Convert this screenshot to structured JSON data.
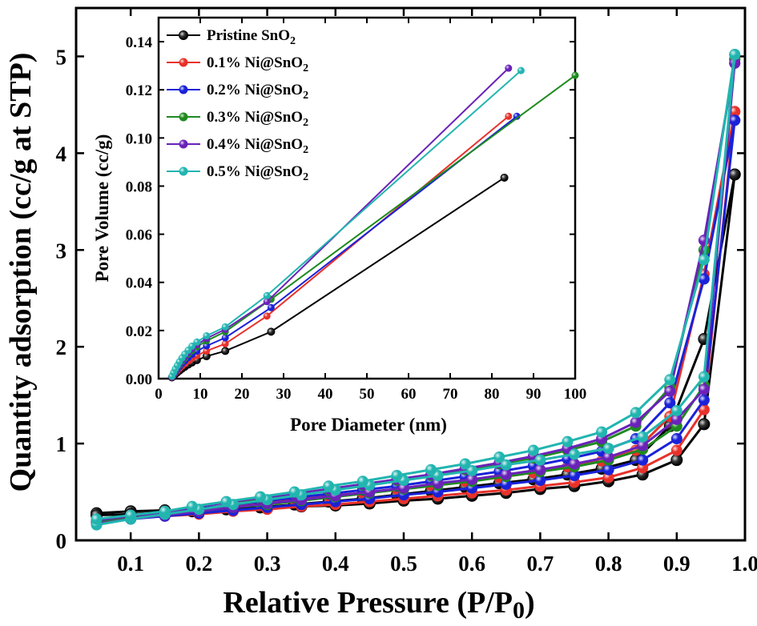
{
  "chart_data": [
    {
      "type": "line",
      "xlabel": "Relative Pressure (P/P",
      "xlabel_sub": "0",
      "xlabel_end": ")",
      "ylabel": "Quantity adsorption (cc/g at STP)",
      "xlim": [
        0.02,
        1.0
      ],
      "ylim": [
        0,
        5.5
      ],
      "xticks": [
        0.1,
        0.2,
        0.3,
        0.4,
        0.5,
        0.6,
        0.7,
        0.8,
        0.9,
        1.0
      ],
      "xtick_labels": [
        "0.1",
        "0.2",
        "0.3",
        "0.4",
        "0.5",
        "0.6",
        "0.7",
        "0.8",
        "0.9",
        "1.0"
      ],
      "yticks": [
        0,
        1,
        2,
        3,
        4,
        5
      ],
      "ytick_labels": [
        "0",
        "1",
        "2",
        "3",
        "4",
        "5"
      ],
      "x": [
        0.05,
        0.1,
        0.15,
        0.2,
        0.25,
        0.3,
        0.35,
        0.4,
        0.45,
        0.5,
        0.55,
        0.6,
        0.65,
        0.7,
        0.75,
        0.8,
        0.85,
        0.9,
        0.94,
        0.985
      ],
      "x_desorption": [
        0.985,
        0.94,
        0.89,
        0.84,
        0.79,
        0.74,
        0.69,
        0.64,
        0.59,
        0.54,
        0.49,
        0.44,
        0.39,
        0.34,
        0.29,
        0.24,
        0.19,
        0.15,
        0.1,
        0.05
      ],
      "series": [
        {
          "color": "#000000",
          "adsorption": [
            0.28,
            0.3,
            0.31,
            0.31,
            0.32,
            0.33,
            0.35,
            0.36,
            0.38,
            0.41,
            0.43,
            0.46,
            0.49,
            0.53,
            0.56,
            0.61,
            0.68,
            0.83,
            1.2,
            3.78
          ],
          "desorption": [
            3.78,
            2.08,
            1.18,
            0.83,
            0.74,
            0.68,
            0.63,
            0.59,
            0.55,
            0.51,
            0.47,
            0.43,
            0.4,
            0.37,
            0.34,
            0.32,
            0.3,
            0.29,
            0.27,
            0.26
          ]
        },
        {
          "color": "#e8312a",
          "adsorption": [
            0.19,
            0.23,
            0.25,
            0.27,
            0.3,
            0.32,
            0.35,
            0.37,
            0.4,
            0.43,
            0.46,
            0.49,
            0.52,
            0.56,
            0.6,
            0.65,
            0.75,
            0.93,
            1.35,
            4.43
          ],
          "desorption": [
            4.43,
            2.75,
            1.28,
            0.93,
            0.82,
            0.76,
            0.7,
            0.65,
            0.61,
            0.57,
            0.53,
            0.49,
            0.46,
            0.42,
            0.39,
            0.35,
            0.31,
            0.27,
            0.23,
            0.19
          ]
        },
        {
          "color": "#1a22d8",
          "adsorption": [
            0.18,
            0.22,
            0.25,
            0.28,
            0.31,
            0.34,
            0.37,
            0.4,
            0.43,
            0.47,
            0.5,
            0.54,
            0.58,
            0.62,
            0.67,
            0.73,
            0.83,
            1.05,
            1.45,
            4.34
          ],
          "desorption": [
            4.34,
            2.7,
            1.42,
            1.05,
            0.92,
            0.84,
            0.77,
            0.71,
            0.66,
            0.61,
            0.56,
            0.52,
            0.48,
            0.44,
            0.4,
            0.36,
            0.32,
            0.28,
            0.24,
            0.2
          ]
        },
        {
          "color": "#1f8a1f",
          "adsorption": [
            0.18,
            0.23,
            0.27,
            0.3,
            0.34,
            0.37,
            0.41,
            0.45,
            0.49,
            0.53,
            0.57,
            0.61,
            0.66,
            0.71,
            0.76,
            0.83,
            0.94,
            1.18,
            1.6,
            4.97
          ],
          "desorption": [
            4.97,
            3.0,
            1.58,
            1.18,
            1.02,
            0.93,
            0.85,
            0.79,
            0.73,
            0.67,
            0.62,
            0.57,
            0.52,
            0.48,
            0.43,
            0.39,
            0.34,
            0.29,
            0.25,
            0.21
          ]
        },
        {
          "color": "#6a22b8",
          "adsorption": [
            0.17,
            0.22,
            0.26,
            0.3,
            0.34,
            0.38,
            0.42,
            0.46,
            0.5,
            0.54,
            0.59,
            0.63,
            0.68,
            0.73,
            0.79,
            0.86,
            0.98,
            1.25,
            1.56,
            4.93
          ],
          "desorption": [
            4.93,
            3.1,
            1.54,
            1.22,
            1.05,
            0.95,
            0.87,
            0.8,
            0.74,
            0.68,
            0.63,
            0.58,
            0.53,
            0.48,
            0.44,
            0.39,
            0.34,
            0.29,
            0.25,
            0.21
          ]
        },
        {
          "color": "#22b5b0",
          "adsorption": [
            0.16,
            0.22,
            0.27,
            0.32,
            0.37,
            0.42,
            0.47,
            0.52,
            0.57,
            0.62,
            0.67,
            0.72,
            0.78,
            0.83,
            0.89,
            0.95,
            1.07,
            1.34,
            1.69,
            5.02
          ],
          "desorption": [
            5.02,
            2.9,
            1.66,
            1.32,
            1.12,
            1.02,
            0.93,
            0.86,
            0.79,
            0.73,
            0.67,
            0.61,
            0.56,
            0.5,
            0.45,
            0.4,
            0.35,
            0.3,
            0.26,
            0.22
          ]
        }
      ]
    },
    {
      "type": "line",
      "xlabel": "Pore Diameter (nm)",
      "ylabel": "Pore Volume (cc/g)",
      "xlim": [
        0,
        100
      ],
      "ylim": [
        0,
        0.15
      ],
      "xticks": [
        0,
        10,
        20,
        30,
        40,
        50,
        60,
        70,
        80,
        90,
        100
      ],
      "xtick_labels": [
        "0",
        "10",
        "20",
        "30",
        "40",
        "50",
        "60",
        "70",
        "80",
        "90",
        "100"
      ],
      "yticks": [
        0.0,
        0.02,
        0.04,
        0.06,
        0.08,
        0.1,
        0.12,
        0.14
      ],
      "ytick_labels": [
        "0.00",
        "0.02",
        "0.04",
        "0.06",
        "0.08",
        "0.10",
        "0.12",
        "0.14"
      ],
      "legend_position": "top-left",
      "series": [
        {
          "name_pre": "Pristine SnO",
          "name_sub": "2",
          "color": "#000000",
          "x": [
            3.2,
            3.6,
            4.0,
            4.5,
            5.0,
            5.6,
            6.3,
            7.1,
            8.0,
            9.2,
            11.5,
            16.0,
            27.0,
            83.0
          ],
          "y": [
            0.0005,
            0.0012,
            0.0019,
            0.0026,
            0.0033,
            0.0041,
            0.0049,
            0.0058,
            0.0067,
            0.0077,
            0.0093,
            0.0115,
            0.0195,
            0.0835
          ]
        },
        {
          "name_pre": "0.1% Ni@SnO",
          "name_sub": "2",
          "color": "#e8312a",
          "x": [
            3.2,
            3.6,
            4.0,
            4.5,
            5.0,
            5.6,
            6.3,
            7.1,
            8.0,
            9.2,
            11.5,
            16.0,
            26.0,
            84.0
          ],
          "y": [
            0.0006,
            0.0015,
            0.0024,
            0.0033,
            0.0042,
            0.0052,
            0.0062,
            0.0073,
            0.0084,
            0.0096,
            0.0115,
            0.0145,
            0.026,
            0.109
          ]
        },
        {
          "name_pre": "0.2% Ni@SnO",
          "name_sub": "2",
          "color": "#1a22d8",
          "x": [
            3.2,
            3.6,
            4.0,
            4.5,
            5.0,
            5.6,
            6.3,
            7.1,
            8.0,
            9.2,
            11.5,
            16.0,
            27.0,
            86.0
          ],
          "y": [
            0.0007,
            0.0017,
            0.0028,
            0.0039,
            0.005,
            0.0062,
            0.0074,
            0.0087,
            0.01,
            0.0114,
            0.0136,
            0.017,
            0.0295,
            0.109
          ]
        },
        {
          "name_pre": "0.3% Ni@SnO",
          "name_sub": "2",
          "color": "#1f8a1f",
          "x": [
            3.2,
            3.6,
            4.0,
            4.5,
            5.0,
            5.6,
            6.3,
            7.1,
            8.0,
            9.2,
            11.5,
            16.0,
            27.0,
            100.0
          ],
          "y": [
            0.0008,
            0.002,
            0.0032,
            0.0045,
            0.0058,
            0.0072,
            0.0086,
            0.0101,
            0.0116,
            0.0132,
            0.0157,
            0.0195,
            0.033,
            0.126
          ]
        },
        {
          "name_pre": "0.4% Ni@SnO",
          "name_sub": "2",
          "color": "#6a22b8",
          "x": [
            3.2,
            3.6,
            4.0,
            4.5,
            5.0,
            5.6,
            6.3,
            7.1,
            8.0,
            9.2,
            11.5,
            16.0,
            26.0,
            84.0
          ],
          "y": [
            0.0008,
            0.0021,
            0.0034,
            0.0048,
            0.0062,
            0.0077,
            0.0092,
            0.0108,
            0.0124,
            0.0141,
            0.0167,
            0.0205,
            0.032,
            0.129
          ]
        },
        {
          "name_pre": "0.5% Ni@SnO",
          "name_sub": "2",
          "color": "#22b5b0",
          "x": [
            3.2,
            3.6,
            4.0,
            4.5,
            5.0,
            5.6,
            6.3,
            7.1,
            8.0,
            9.2,
            11.5,
            16.0,
            26.0,
            87.0
          ],
          "y": [
            0.001,
            0.0025,
            0.004,
            0.0055,
            0.007,
            0.0086,
            0.0102,
            0.0118,
            0.0135,
            0.0152,
            0.0178,
            0.0215,
            0.0345,
            0.128
          ]
        }
      ]
    }
  ]
}
